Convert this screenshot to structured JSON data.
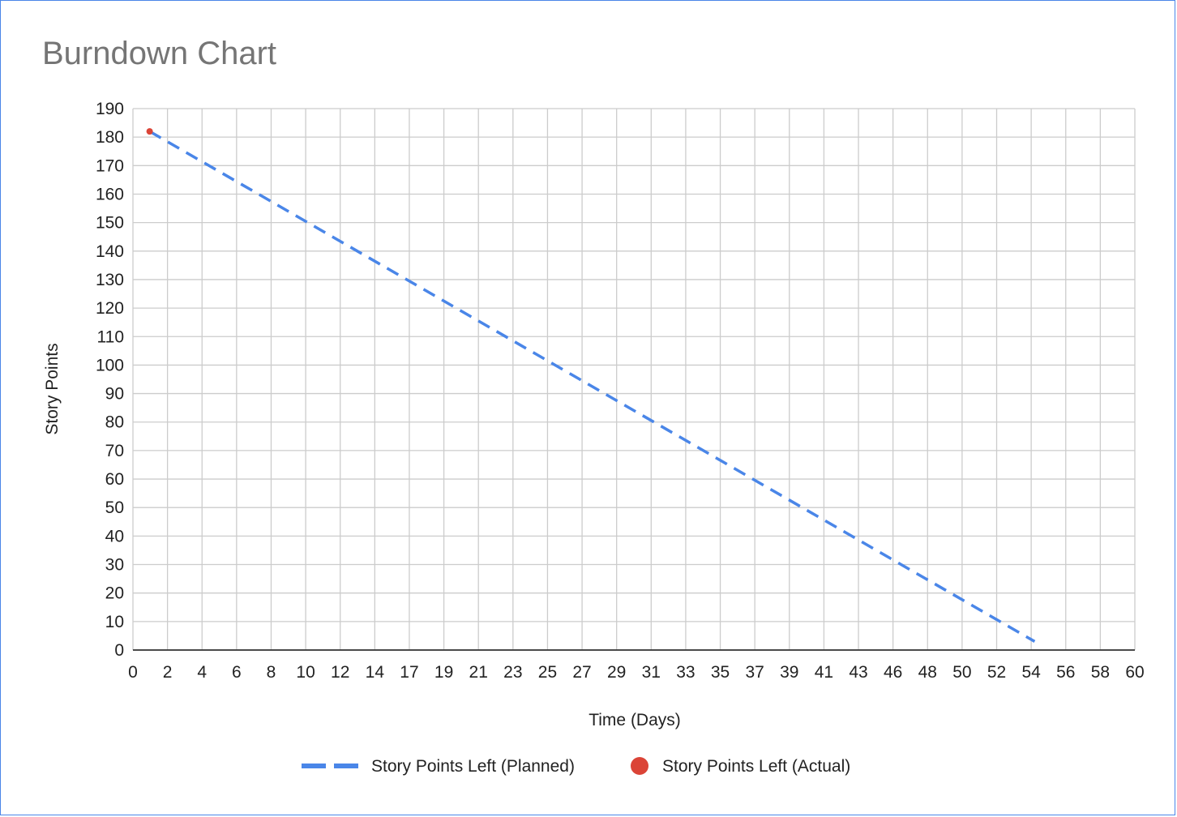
{
  "chart_data": {
    "type": "line",
    "title": "Burndown Chart",
    "xlabel": "Time (Days)",
    "ylabel": "Story Points",
    "xlim": [
      0,
      60
    ],
    "ylim": [
      0,
      190
    ],
    "grid": true,
    "legend_position": "bottom",
    "x_tick_labels": [
      "0",
      "2",
      "4",
      "6",
      "8",
      "10",
      "12",
      "14",
      "17",
      "19",
      "21",
      "23",
      "25",
      "27",
      "29",
      "31",
      "33",
      "35",
      "37",
      "39",
      "41",
      "43",
      "46",
      "48",
      "50",
      "52",
      "54",
      "56",
      "58",
      "60"
    ],
    "y_tick_labels": [
      "0",
      "10",
      "20",
      "30",
      "40",
      "50",
      "60",
      "70",
      "80",
      "90",
      "100",
      "110",
      "120",
      "130",
      "140",
      "150",
      "160",
      "170",
      "180",
      "190"
    ],
    "series": [
      {
        "name": "Story Points Left (Planned)",
        "style": "dashed-line",
        "color": "#4a86e8",
        "points": [
          {
            "x": 1,
            "y": 182
          },
          {
            "x": 54,
            "y": 3
          }
        ]
      },
      {
        "name": "Story Points Left (Actual)",
        "style": "point",
        "color": "#db4437",
        "points": [
          {
            "x": 1,
            "y": 182
          }
        ]
      }
    ]
  }
}
